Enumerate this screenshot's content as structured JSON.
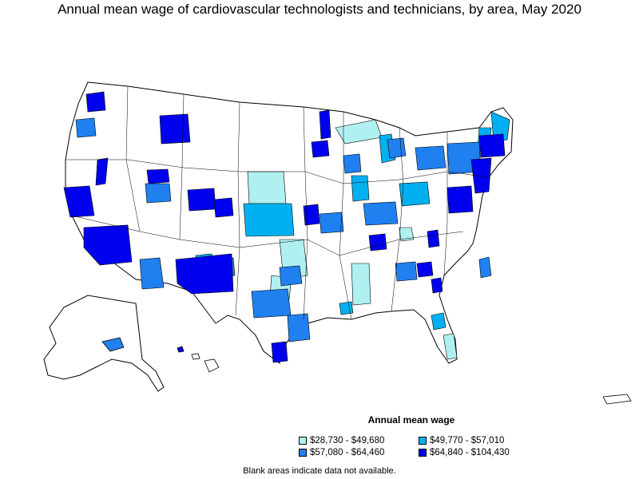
{
  "title": "Annual mean wage of cardiovascular technologists and technicians, by area, May 2020",
  "legend": {
    "title": "Annual mean wage",
    "items": [
      {
        "label": "$28,730 - $49,680",
        "color": "#b0f0f0"
      },
      {
        "label": "$49,770 - $57,010",
        "color": "#00b0f0"
      },
      {
        "label": "$57,080 - $64,460",
        "color": "#2080f0"
      },
      {
        "label": "$64,840 - $104,430",
        "color": "#0000ee"
      }
    ]
  },
  "note": "Blank areas indicate data not available.",
  "colors": {
    "outline": "#000000",
    "background": "#ffffff"
  }
}
